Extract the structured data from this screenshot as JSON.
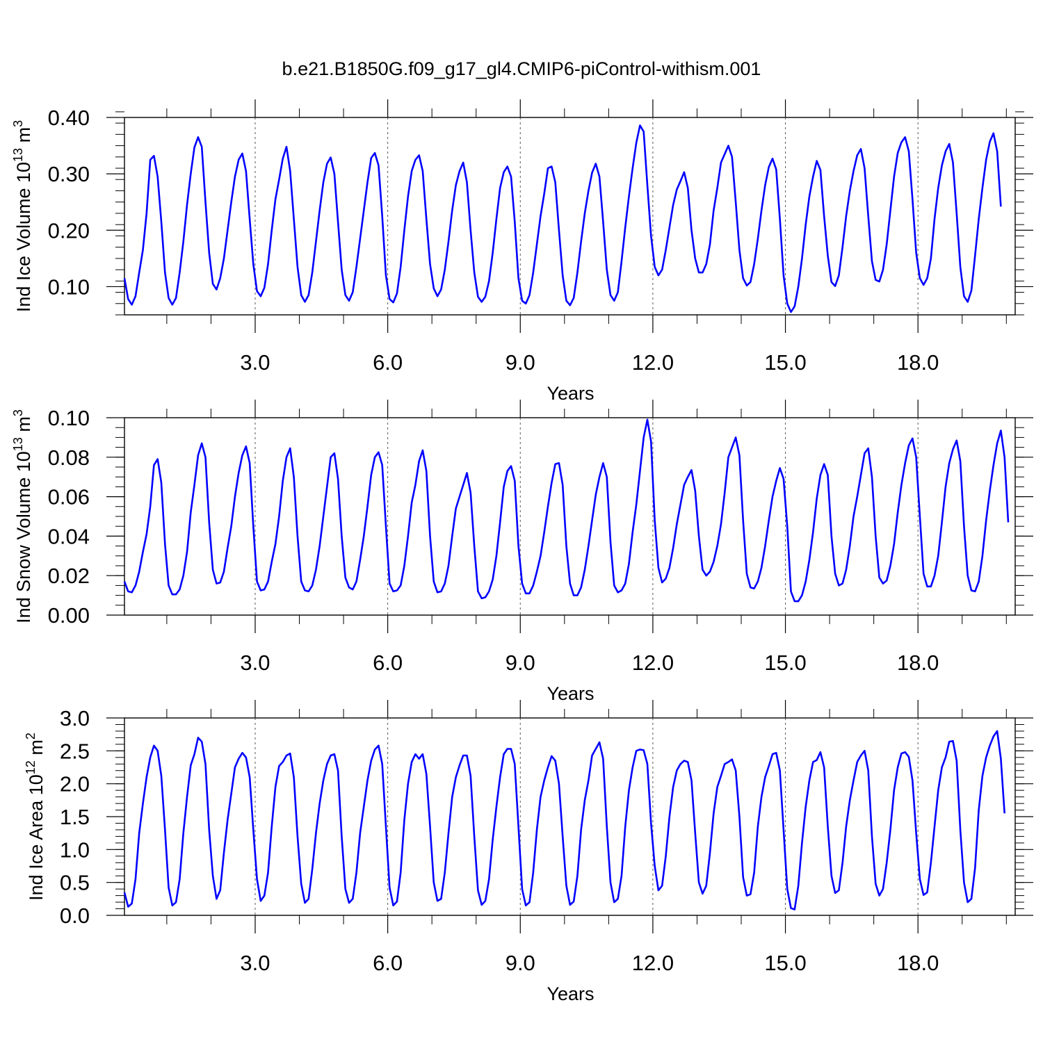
{
  "figure_title": "b.e21.B1850G.f09_g17_gl4.CMIP6-piControl-withism.001",
  "colors": {
    "line": "#0000ff",
    "axis": "#000000",
    "refline": "#555555"
  },
  "chart_data": [
    {
      "type": "line",
      "title": "b.e21.B1850G.f09_g17_gl4.CMIP6-piControl-withism.001",
      "xlabel": "Years",
      "ylabel": {
        "base": "Ind Ice Volume 10",
        "exp": "13",
        "unit": " m",
        "unit_exp": "3"
      },
      "xlim": [
        0.042,
        20.2
      ],
      "ylim": [
        0.05,
        0.4
      ],
      "xticks": [
        3,
        6,
        9,
        12,
        15,
        18
      ],
      "xtick_labels": [
        "3.0",
        "6.0",
        "9.0",
        "12.0",
        "15.0",
        "18.0"
      ],
      "yticks": [
        0.1,
        0.2,
        0.3,
        0.4
      ],
      "ytick_labels": [
        "0.10",
        "0.20",
        "0.30",
        "0.40"
      ],
      "y_minor": 0.02,
      "reference_lines_x": [
        3,
        6,
        9,
        12,
        15,
        18
      ],
      "x_start": 0.042,
      "x_step": 0.0833333,
      "series": [
        {
          "values": [
            0.115,
            0.078,
            0.068,
            0.083,
            0.125,
            0.165,
            0.23,
            0.325,
            0.332,
            0.295,
            0.215,
            0.125,
            0.08,
            0.068,
            0.08,
            0.125,
            0.18,
            0.245,
            0.3,
            0.347,
            0.365,
            0.348,
            0.25,
            0.16,
            0.105,
            0.095,
            0.115,
            0.15,
            0.2,
            0.25,
            0.295,
            0.325,
            0.336,
            0.305,
            0.22,
            0.14,
            0.092,
            0.083,
            0.098,
            0.14,
            0.2,
            0.255,
            0.29,
            0.327,
            0.348,
            0.305,
            0.22,
            0.135,
            0.085,
            0.073,
            0.085,
            0.125,
            0.18,
            0.235,
            0.285,
            0.318,
            0.329,
            0.3,
            0.215,
            0.13,
            0.085,
            0.075,
            0.09,
            0.135,
            0.185,
            0.235,
            0.285,
            0.328,
            0.337,
            0.315,
            0.225,
            0.12,
            0.078,
            0.072,
            0.088,
            0.135,
            0.2,
            0.26,
            0.305,
            0.325,
            0.333,
            0.305,
            0.22,
            0.14,
            0.097,
            0.083,
            0.095,
            0.13,
            0.18,
            0.235,
            0.28,
            0.305,
            0.32,
            0.285,
            0.2,
            0.125,
            0.082,
            0.073,
            0.082,
            0.11,
            0.16,
            0.22,
            0.275,
            0.303,
            0.313,
            0.295,
            0.215,
            0.115,
            0.075,
            0.07,
            0.085,
            0.125,
            0.175,
            0.225,
            0.265,
            0.31,
            0.313,
            0.285,
            0.2,
            0.12,
            0.075,
            0.067,
            0.08,
            0.125,
            0.18,
            0.23,
            0.27,
            0.302,
            0.318,
            0.295,
            0.215,
            0.13,
            0.085,
            0.075,
            0.09,
            0.145,
            0.205,
            0.26,
            0.31,
            0.355,
            0.386,
            0.375,
            0.28,
            0.19,
            0.135,
            0.12,
            0.13,
            0.165,
            0.205,
            0.245,
            0.272,
            0.287,
            0.303,
            0.275,
            0.2,
            0.15,
            0.125,
            0.125,
            0.14,
            0.175,
            0.235,
            0.275,
            0.32,
            0.335,
            0.35,
            0.33,
            0.25,
            0.165,
            0.115,
            0.102,
            0.108,
            0.14,
            0.185,
            0.235,
            0.28,
            0.312,
            0.327,
            0.308,
            0.22,
            0.12,
            0.07,
            0.055,
            0.065,
            0.1,
            0.15,
            0.21,
            0.26,
            0.295,
            0.323,
            0.307,
            0.225,
            0.155,
            0.108,
            0.101,
            0.12,
            0.17,
            0.225,
            0.27,
            0.305,
            0.333,
            0.344,
            0.31,
            0.225,
            0.145,
            0.112,
            0.109,
            0.13,
            0.175,
            0.235,
            0.295,
            0.337,
            0.356,
            0.365,
            0.34,
            0.255,
            0.16,
            0.115,
            0.103,
            0.115,
            0.15,
            0.22,
            0.275,
            0.315,
            0.34,
            0.353,
            0.32,
            0.23,
            0.135,
            0.083,
            0.073,
            0.093,
            0.155,
            0.22,
            0.275,
            0.325,
            0.357,
            0.372,
            0.34,
            0.242
          ]
        }
      ]
    },
    {
      "type": "line",
      "xlabel": "Years",
      "ylabel": {
        "base": "Ind Snow Volume 10",
        "exp": "13",
        "unit": " m",
        "unit_exp": "3"
      },
      "xlim": [
        0.042,
        20.2
      ],
      "ylim": [
        0.0,
        0.1
      ],
      "xticks": [
        3,
        6,
        9,
        12,
        15,
        18
      ],
      "xtick_labels": [
        "3.0",
        "6.0",
        "9.0",
        "12.0",
        "15.0",
        "18.0"
      ],
      "yticks": [
        0.0,
        0.02,
        0.04,
        0.06,
        0.08,
        0.1
      ],
      "ytick_labels": [
        "0.00",
        "0.02",
        "0.04",
        "0.06",
        "0.08",
        "0.10"
      ],
      "y_minor": 0.005,
      "reference_lines_x": [
        3,
        6,
        9,
        12,
        15,
        18
      ],
      "x_start": 0.042,
      "x_step": 0.0833333,
      "series": [
        {
          "values": [
            0.017,
            0.012,
            0.0115,
            0.015,
            0.022,
            0.032,
            0.041,
            0.055,
            0.076,
            0.079,
            0.067,
            0.036,
            0.015,
            0.0105,
            0.0105,
            0.013,
            0.02,
            0.032,
            0.052,
            0.066,
            0.081,
            0.087,
            0.08,
            0.047,
            0.023,
            0.016,
            0.0165,
            0.022,
            0.034,
            0.045,
            0.06,
            0.072,
            0.081,
            0.0855,
            0.077,
            0.045,
            0.017,
            0.0125,
            0.013,
            0.017,
            0.027,
            0.036,
            0.05,
            0.068,
            0.08,
            0.0845,
            0.07,
            0.04,
            0.017,
            0.0125,
            0.012,
            0.015,
            0.023,
            0.035,
            0.05,
            0.065,
            0.08,
            0.082,
            0.069,
            0.04,
            0.019,
            0.014,
            0.013,
            0.017,
            0.028,
            0.04,
            0.055,
            0.071,
            0.08,
            0.0825,
            0.076,
            0.045,
            0.016,
            0.012,
            0.0125,
            0.015,
            0.025,
            0.04,
            0.057,
            0.066,
            0.078,
            0.0835,
            0.073,
            0.04,
            0.017,
            0.0115,
            0.012,
            0.016,
            0.025,
            0.04,
            0.054,
            0.06,
            0.066,
            0.072,
            0.062,
            0.035,
            0.012,
            0.0085,
            0.009,
            0.012,
            0.018,
            0.03,
            0.047,
            0.065,
            0.073,
            0.0755,
            0.068,
            0.035,
            0.016,
            0.011,
            0.011,
            0.015,
            0.022,
            0.03,
            0.042,
            0.055,
            0.067,
            0.0765,
            0.077,
            0.066,
            0.035,
            0.016,
            0.01,
            0.01,
            0.014,
            0.023,
            0.035,
            0.048,
            0.061,
            0.07,
            0.077,
            0.07,
            0.037,
            0.015,
            0.0115,
            0.0125,
            0.016,
            0.026,
            0.042,
            0.056,
            0.073,
            0.09,
            0.099,
            0.088,
            0.048,
            0.024,
            0.0165,
            0.0185,
            0.024,
            0.034,
            0.046,
            0.056,
            0.066,
            0.07,
            0.0735,
            0.063,
            0.04,
            0.023,
            0.02,
            0.022,
            0.027,
            0.035,
            0.046,
            0.062,
            0.08,
            0.085,
            0.09,
            0.081,
            0.048,
            0.021,
            0.014,
            0.0135,
            0.017,
            0.024,
            0.035,
            0.048,
            0.06,
            0.068,
            0.0745,
            0.069,
            0.045,
            0.012,
            0.007,
            0.007,
            0.01,
            0.017,
            0.028,
            0.042,
            0.059,
            0.071,
            0.0765,
            0.071,
            0.04,
            0.021,
            0.015,
            0.016,
            0.023,
            0.035,
            0.05,
            0.06,
            0.071,
            0.082,
            0.0845,
            0.07,
            0.04,
            0.019,
            0.016,
            0.0175,
            0.025,
            0.036,
            0.052,
            0.066,
            0.077,
            0.086,
            0.0895,
            0.08,
            0.05,
            0.021,
            0.0145,
            0.0145,
            0.02,
            0.03,
            0.047,
            0.065,
            0.077,
            0.084,
            0.0885,
            0.078,
            0.045,
            0.02,
            0.0125,
            0.012,
            0.017,
            0.03,
            0.048,
            0.063,
            0.076,
            0.087,
            0.0935,
            0.08,
            0.047
          ]
        }
      ]
    },
    {
      "type": "line",
      "xlabel": "Years",
      "ylabel": {
        "base": "Ind Ice Area 10",
        "exp": "12",
        "unit": " m",
        "unit_exp": "2"
      },
      "xlim": [
        0.042,
        20.2
      ],
      "ylim": [
        0.0,
        3.0
      ],
      "xticks": [
        3,
        6,
        9,
        12,
        15,
        18
      ],
      "xtick_labels": [
        "3.0",
        "6.0",
        "9.0",
        "12.0",
        "15.0",
        "18.0"
      ],
      "yticks": [
        0.0,
        0.5,
        1.0,
        1.5,
        2.0,
        2.5,
        3.0
      ],
      "ytick_labels": [
        "0.0",
        "0.5",
        "1.0",
        "1.5",
        "2.0",
        "2.5",
        "3.0"
      ],
      "y_minor": 0.1,
      "reference_lines_x": [
        3,
        6,
        9,
        12,
        15,
        18
      ],
      "x_start": 0.042,
      "x_step": 0.0833333,
      "series": [
        {
          "values": [
            0.35,
            0.13,
            0.18,
            0.55,
            1.25,
            1.7,
            2.1,
            2.4,
            2.58,
            2.5,
            2.12,
            1.3,
            0.42,
            0.15,
            0.2,
            0.55,
            1.25,
            1.8,
            2.28,
            2.45,
            2.7,
            2.64,
            2.3,
            1.3,
            0.6,
            0.25,
            0.38,
            0.95,
            1.45,
            1.85,
            2.25,
            2.38,
            2.47,
            2.4,
            2.1,
            1.3,
            0.55,
            0.22,
            0.3,
            0.65,
            1.35,
            1.95,
            2.27,
            2.33,
            2.43,
            2.46,
            2.1,
            1.2,
            0.48,
            0.19,
            0.25,
            0.7,
            1.25,
            1.7,
            2.05,
            2.3,
            2.43,
            2.45,
            2.2,
            1.2,
            0.4,
            0.19,
            0.25,
            0.65,
            1.25,
            1.65,
            2.05,
            2.35,
            2.52,
            2.58,
            2.3,
            1.35,
            0.42,
            0.15,
            0.21,
            0.65,
            1.45,
            2.0,
            2.33,
            2.45,
            2.38,
            2.45,
            2.15,
            1.35,
            0.5,
            0.22,
            0.25,
            0.65,
            1.25,
            1.8,
            2.1,
            2.28,
            2.43,
            2.43,
            2.12,
            1.2,
            0.38,
            0.16,
            0.22,
            0.55,
            1.15,
            1.65,
            2.1,
            2.45,
            2.53,
            2.53,
            2.3,
            1.35,
            0.4,
            0.15,
            0.2,
            0.65,
            1.3,
            1.8,
            2.05,
            2.25,
            2.42,
            2.35,
            2.0,
            1.2,
            0.45,
            0.16,
            0.21,
            0.6,
            1.3,
            1.75,
            2.05,
            2.43,
            2.53,
            2.63,
            2.38,
            1.35,
            0.5,
            0.2,
            0.25,
            0.6,
            1.35,
            1.9,
            2.25,
            2.5,
            2.52,
            2.51,
            2.3,
            1.4,
            0.75,
            0.38,
            0.45,
            0.9,
            1.5,
            1.95,
            2.2,
            2.3,
            2.35,
            2.33,
            2.05,
            1.25,
            0.5,
            0.33,
            0.45,
            0.95,
            1.55,
            1.95,
            2.12,
            2.3,
            2.33,
            2.37,
            2.2,
            1.5,
            0.58,
            0.3,
            0.32,
            0.65,
            1.35,
            1.8,
            2.1,
            2.27,
            2.45,
            2.47,
            2.2,
            1.3,
            0.4,
            0.11,
            0.09,
            0.45,
            1.1,
            1.65,
            2.05,
            2.33,
            2.36,
            2.48,
            2.25,
            1.35,
            0.6,
            0.34,
            0.38,
            0.8,
            1.35,
            1.75,
            2.05,
            2.33,
            2.43,
            2.5,
            2.2,
            1.2,
            0.48,
            0.3,
            0.4,
            0.8,
            1.3,
            1.9,
            2.25,
            2.46,
            2.48,
            2.41,
            2.05,
            1.25,
            0.55,
            0.31,
            0.35,
            0.8,
            1.35,
            1.9,
            2.25,
            2.4,
            2.64,
            2.65,
            2.35,
            1.3,
            0.5,
            0.2,
            0.25,
            0.72,
            1.6,
            2.12,
            2.4,
            2.58,
            2.72,
            2.8,
            2.38,
            1.55
          ]
        }
      ]
    }
  ]
}
